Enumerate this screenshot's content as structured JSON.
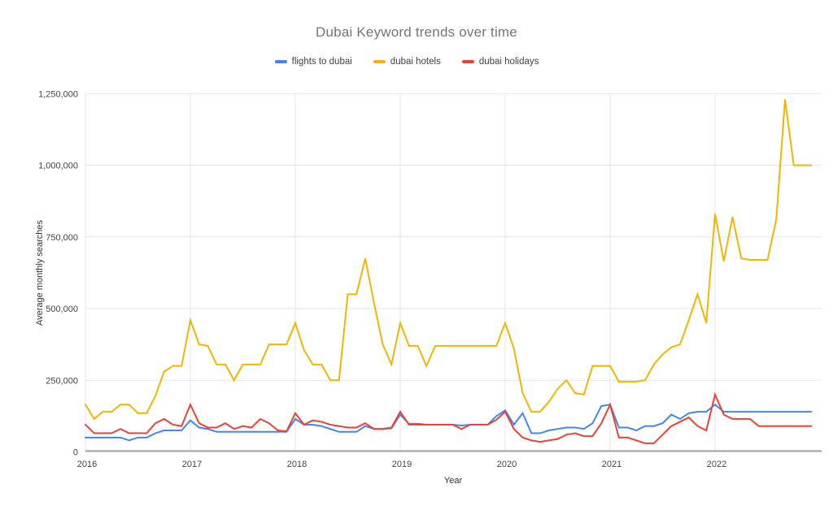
{
  "chart": {
    "title": "Dubai Keyword trends over time",
    "legend": [
      {
        "label": "flights to dubai",
        "color": "#4285f4"
      },
      {
        "label": "dubai hotels",
        "color": "#f4b400"
      },
      {
        "label": "dubai holidays",
        "color": "#ea4335"
      }
    ],
    "y_axis_title": "Average monthly searches",
    "x_axis_title": "Year",
    "y_tick_labels": [
      "0",
      "250,000",
      "500,000",
      "750,000",
      "1,000,000",
      "1,250,000"
    ],
    "x_tick_labels": [
      "2016",
      "2017",
      "2018",
      "2019",
      "2020",
      "2021",
      "2022"
    ],
    "grid_color": "#e6e6e6",
    "axis_line_color": "#9e9e9e",
    "title_color": "#757575",
    "background_color": "#ffffff"
  },
  "chart_data": {
    "type": "line",
    "title": "Dubai Keyword trends over time",
    "xlabel": "Year",
    "ylabel": "Average monthly searches",
    "x_unit": "month",
    "x_start": "2016-01",
    "x_end": "2022-12",
    "months_per_series": 84,
    "ylim": [
      0,
      1250000
    ],
    "y_tick_step": 250000,
    "grid": true,
    "legend_position": "top",
    "x_year_ticks": [
      2016,
      2017,
      2018,
      2019,
      2020,
      2021,
      2022
    ],
    "series": [
      {
        "name": "flights to dubai",
        "color": "#4285f4",
        "values": [
          50000,
          50000,
          50000,
          50000,
          50000,
          40000,
          50000,
          50000,
          65000,
          75000,
          75000,
          75000,
          110000,
          85000,
          80000,
          70000,
          70000,
          70000,
          70000,
          70000,
          70000,
          70000,
          70000,
          70000,
          115000,
          95000,
          95000,
          90000,
          80000,
          70000,
          70000,
          70000,
          90000,
          80000,
          80000,
          82000,
          130000,
          98000,
          98000,
          95000,
          95000,
          95000,
          95000,
          92000,
          95000,
          95000,
          95000,
          125000,
          145000,
          95000,
          135000,
          65000,
          65000,
          75000,
          80000,
          85000,
          85000,
          80000,
          100000,
          160000,
          165000,
          85000,
          85000,
          75000,
          90000,
          90000,
          100000,
          130000,
          115000,
          135000,
          140000,
          140000,
          165000,
          140000,
          140000,
          140000,
          140000,
          140000,
          140000,
          140000,
          140000,
          140000,
          140000,
          140000
        ]
      },
      {
        "name": "dubai hotels",
        "color": "#f4b400",
        "values": [
          165000,
          115000,
          140000,
          140000,
          165000,
          165000,
          135000,
          135000,
          195000,
          280000,
          300000,
          300000,
          460000,
          375000,
          370000,
          305000,
          305000,
          250000,
          305000,
          305000,
          305000,
          375000,
          375000,
          375000,
          450000,
          355000,
          305000,
          305000,
          250000,
          250000,
          550000,
          550000,
          675000,
          520000,
          375000,
          305000,
          450000,
          370000,
          370000,
          300000,
          370000,
          370000,
          370000,
          370000,
          370000,
          370000,
          370000,
          370000,
          450000,
          360000,
          205000,
          140000,
          140000,
          175000,
          220000,
          250000,
          205000,
          200000,
          300000,
          300000,
          300000,
          245000,
          245000,
          245000,
          250000,
          305000,
          340000,
          365000,
          375000,
          460000,
          550000,
          450000,
          830000,
          665000,
          820000,
          675000,
          670000,
          670000,
          670000,
          810000,
          1230000,
          1000000,
          1000000,
          1000000
        ]
      },
      {
        "name": "dubai holidays",
        "color": "#ea4335",
        "values": [
          95000,
          65000,
          65000,
          65000,
          80000,
          65000,
          65000,
          65000,
          100000,
          115000,
          95000,
          90000,
          165000,
          100000,
          85000,
          85000,
          100000,
          80000,
          90000,
          85000,
          115000,
          100000,
          75000,
          72000,
          135000,
          95000,
          110000,
          105000,
          95000,
          90000,
          85000,
          85000,
          100000,
          80000,
          80000,
          85000,
          140000,
          95000,
          95000,
          95000,
          95000,
          95000,
          95000,
          80000,
          95000,
          95000,
          95000,
          112000,
          140000,
          80000,
          50000,
          40000,
          35000,
          40000,
          45000,
          60000,
          65000,
          55000,
          55000,
          100000,
          165000,
          50000,
          50000,
          40000,
          30000,
          30000,
          60000,
          90000,
          105000,
          120000,
          90000,
          75000,
          200000,
          130000,
          115000,
          115000,
          115000,
          90000,
          90000,
          90000,
          90000,
          90000,
          90000,
          90000
        ]
      }
    ]
  }
}
